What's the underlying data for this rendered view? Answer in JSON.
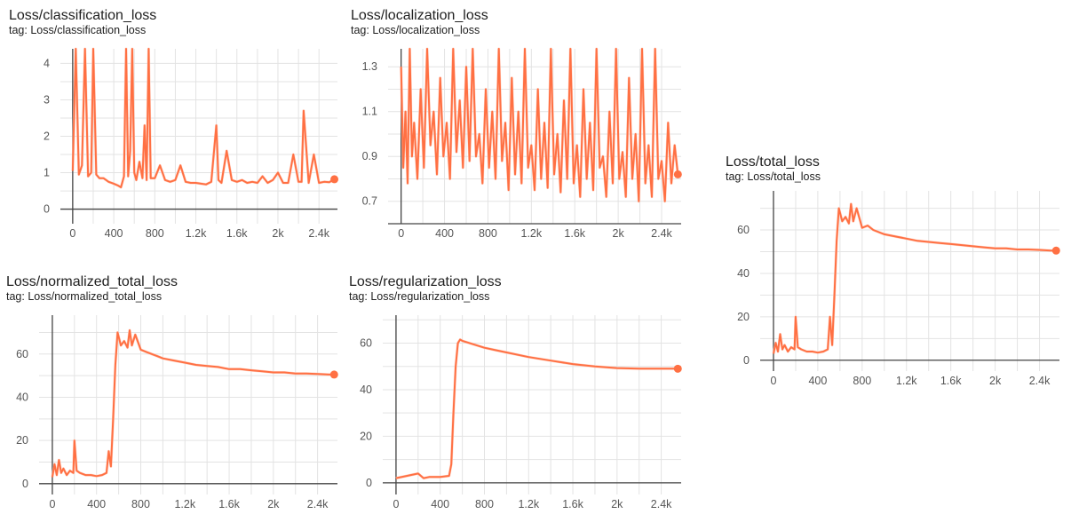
{
  "theme": {
    "accent": "#ff7043",
    "accent_light": "#ffccbc"
  },
  "chart_data": [
    {
      "id": "classification",
      "type": "line",
      "title": "Loss/classification_loss",
      "tag": "tag: Loss/classification_loss",
      "xlim": [
        -120,
        2580
      ],
      "ylim": [
        -0.4,
        4.4
      ],
      "xticks": [
        0,
        400,
        800,
        1200,
        1600,
        2000,
        2400
      ],
      "xtick_labels": [
        "0",
        "400",
        "800",
        "1.2k",
        "1.6k",
        "2k",
        "2.4k"
      ],
      "yticks": [
        0,
        1,
        2,
        3,
        4
      ],
      "ytick_labels": [
        "0",
        "1",
        "2",
        "3",
        "4"
      ],
      "grid": true,
      "series": [
        {
          "x": [
            0,
            30,
            60,
            90,
            120,
            150,
            180,
            200,
            230,
            260,
            300,
            350,
            400,
            440,
            470,
            500,
            520,
            540,
            560,
            580,
            600,
            620,
            650,
            680,
            700,
            720,
            740,
            760,
            800,
            850,
            900,
            950,
            1000,
            1050,
            1100,
            1150,
            1200,
            1250,
            1300,
            1350,
            1400,
            1420,
            1450,
            1500,
            1550,
            1600,
            1650,
            1700,
            1750,
            1800,
            1850,
            1900,
            1950,
            2000,
            2050,
            2100,
            2150,
            2200,
            2230,
            2250,
            2300,
            2350,
            2400,
            2450,
            2500,
            2550
          ],
          "y": [
            1.05,
            4.4,
            0.95,
            1.2,
            4.4,
            0.9,
            1.0,
            4.4,
            0.95,
            0.85,
            0.85,
            0.75,
            0.7,
            0.65,
            0.6,
            0.9,
            4.4,
            0.9,
            1.6,
            4.4,
            1.0,
            0.8,
            1.3,
            0.85,
            2.3,
            0.8,
            4.4,
            0.85,
            0.85,
            1.2,
            0.8,
            0.75,
            0.8,
            1.2,
            0.75,
            0.72,
            0.72,
            0.7,
            0.68,
            0.75,
            2.3,
            0.8,
            0.72,
            1.6,
            0.8,
            0.75,
            0.8,
            0.72,
            0.75,
            0.72,
            0.9,
            0.72,
            0.8,
            1.0,
            0.72,
            0.72,
            1.5,
            0.75,
            0.75,
            2.7,
            0.72,
            1.5,
            0.72,
            0.75,
            0.74,
            0.82
          ]
        }
      ]
    },
    {
      "id": "localization",
      "type": "line",
      "title": "Loss/localization_loss",
      "tag": "tag: Loss/localization_loss",
      "xlim": [
        -120,
        2580
      ],
      "ylim": [
        0.6,
        1.38
      ],
      "xticks": [
        0,
        400,
        800,
        1200,
        1600,
        2000,
        2400
      ],
      "xtick_labels": [
        "0",
        "400",
        "800",
        "1.2k",
        "1.6k",
        "2k",
        "2.4k"
      ],
      "yticks": [
        0.7,
        0.9,
        1.1,
        1.3
      ],
      "ytick_labels": [
        "0.7",
        "0.9",
        "1.1",
        "1.3"
      ],
      "grid": true,
      "series": [
        {
          "x": [
            0,
            20,
            40,
            60,
            80,
            100,
            120,
            150,
            180,
            210,
            240,
            270,
            300,
            330,
            360,
            390,
            420,
            450,
            480,
            510,
            540,
            570,
            600,
            630,
            660,
            690,
            720,
            750,
            780,
            810,
            840,
            870,
            900,
            930,
            960,
            990,
            1020,
            1050,
            1080,
            1110,
            1140,
            1170,
            1200,
            1230,
            1260,
            1290,
            1320,
            1350,
            1380,
            1410,
            1440,
            1470,
            1500,
            1530,
            1560,
            1590,
            1620,
            1650,
            1680,
            1710,
            1740,
            1770,
            1800,
            1830,
            1860,
            1890,
            1920,
            1950,
            1980,
            2010,
            2040,
            2070,
            2100,
            2130,
            2160,
            2190,
            2220,
            2250,
            2280,
            2310,
            2340,
            2370,
            2400,
            2430,
            2460,
            2490,
            2520,
            2550
          ],
          "y": [
            1.3,
            0.85,
            1.1,
            0.78,
            1.38,
            0.9,
            1.05,
            0.8,
            1.2,
            0.85,
            1.38,
            0.95,
            1.1,
            0.82,
            1.25,
            0.9,
            1.05,
            0.8,
            1.38,
            0.92,
            1.15,
            0.85,
            1.3,
            0.88,
            1.38,
            0.9,
            1.0,
            0.78,
            1.2,
            0.85,
            1.1,
            0.8,
            1.38,
            0.88,
            1.05,
            0.75,
            1.25,
            0.82,
            1.1,
            0.78,
            1.38,
            0.85,
            0.95,
            0.75,
            1.2,
            0.8,
            1.05,
            0.76,
            1.38,
            0.82,
            1.0,
            0.74,
            1.15,
            0.8,
            1.38,
            0.78,
            0.95,
            0.72,
            1.2,
            0.8,
            1.05,
            0.75,
            1.38,
            0.85,
            0.9,
            0.72,
            1.1,
            0.78,
            1.38,
            0.8,
            0.92,
            0.72,
            1.25,
            0.8,
            1.0,
            0.7,
            1.38,
            0.78,
            0.95,
            0.72,
            1.38,
            0.8,
            0.88,
            0.7,
            1.05,
            0.78,
            0.95,
            0.82
          ]
        }
      ]
    },
    {
      "id": "total",
      "type": "line",
      "title": "Loss/total_loss",
      "tag": "tag: Loss/total_loss",
      "xlim": [
        -120,
        2580
      ],
      "ylim": [
        -5,
        78
      ],
      "xticks": [
        0,
        400,
        800,
        1200,
        1600,
        2000,
        2400
      ],
      "xtick_labels": [
        "0",
        "400",
        "800",
        "1.2k",
        "1.6k",
        "2k",
        "2.4k"
      ],
      "yticks": [
        0,
        20,
        40,
        60
      ],
      "ytick_labels": [
        "0",
        "20",
        "40",
        "60"
      ],
      "grid": true,
      "series": [
        {
          "x": [
            0,
            20,
            40,
            60,
            80,
            100,
            130,
            160,
            190,
            200,
            220,
            250,
            300,
            350,
            400,
            450,
            490,
            510,
            530,
            550,
            570,
            590,
            620,
            650,
            680,
            700,
            720,
            750,
            800,
            850,
            900,
            950,
            1000,
            1100,
            1200,
            1300,
            1400,
            1500,
            1600,
            1700,
            1800,
            1900,
            2000,
            2100,
            2200,
            2300,
            2400,
            2500,
            2550
          ],
          "y": [
            3,
            8,
            4,
            12,
            5,
            7,
            4,
            6,
            5,
            20,
            6,
            5,
            4,
            4,
            3.5,
            4,
            5,
            20,
            7,
            30,
            55,
            70,
            64,
            66,
            63,
            72,
            64,
            70,
            61,
            62,
            60,
            59,
            58,
            57,
            56,
            55,
            54.5,
            54,
            53.5,
            53,
            52.5,
            52,
            51.5,
            51.5,
            51,
            51,
            50.8,
            50.5,
            50.5
          ]
        }
      ]
    },
    {
      "id": "normalized",
      "type": "line",
      "title": "Loss/normalized_total_loss",
      "tag": "tag: Loss/normalized_total_loss",
      "xlim": [
        -120,
        2580
      ],
      "ylim": [
        -5,
        78
      ],
      "xticks": [
        0,
        400,
        800,
        1200,
        1600,
        2000,
        2400
      ],
      "xtick_labels": [
        "0",
        "400",
        "800",
        "1.2k",
        "1.6k",
        "2k",
        "2.4k"
      ],
      "yticks": [
        0,
        20,
        40,
        60
      ],
      "ytick_labels": [
        "0",
        "20",
        "40",
        "60"
      ],
      "grid": true,
      "series": [
        {
          "x": [
            0,
            20,
            40,
            60,
            80,
            100,
            130,
            160,
            190,
            200,
            220,
            250,
            300,
            350,
            400,
            450,
            490,
            510,
            530,
            550,
            570,
            590,
            620,
            650,
            680,
            700,
            720,
            750,
            800,
            850,
            900,
            950,
            1000,
            1100,
            1200,
            1300,
            1400,
            1500,
            1600,
            1700,
            1800,
            1900,
            2000,
            2100,
            2200,
            2300,
            2400,
            2500,
            2550
          ],
          "y": [
            3,
            9,
            4,
            11,
            5,
            7,
            4,
            6,
            5,
            20,
            6,
            5,
            4,
            4,
            3.5,
            4,
            5,
            15,
            8,
            30,
            55,
            70,
            64,
            66,
            63,
            71,
            64,
            69,
            62,
            61,
            60,
            59,
            58,
            57,
            56,
            55,
            54.5,
            54,
            53,
            53,
            52.5,
            52,
            51.5,
            51.5,
            51,
            51,
            50.8,
            50.5,
            50.5
          ]
        }
      ]
    },
    {
      "id": "regularization",
      "type": "line",
      "title": "Loss/regularization_loss",
      "tag": "tag: Loss/regularization_loss",
      "xlim": [
        -120,
        2580
      ],
      "ylim": [
        -5,
        72
      ],
      "xticks": [
        0,
        400,
        800,
        1200,
        1600,
        2000,
        2400
      ],
      "xtick_labels": [
        "0",
        "400",
        "800",
        "1.2k",
        "1.6k",
        "2k",
        "2.4k"
      ],
      "yticks": [
        0,
        20,
        40,
        60
      ],
      "ytick_labels": [
        "0",
        "20",
        "40",
        "60"
      ],
      "grid": true,
      "series": [
        {
          "x": [
            0,
            100,
            200,
            250,
            300,
            400,
            480,
            500,
            520,
            540,
            560,
            580,
            600,
            700,
            800,
            900,
            1000,
            1200,
            1400,
            1600,
            1800,
            2000,
            2200,
            2400,
            2500,
            2550
          ],
          "y": [
            2,
            3,
            4,
            2,
            2.5,
            2.5,
            3,
            8,
            30,
            50,
            60,
            61.5,
            61,
            59.5,
            58,
            57,
            56,
            54,
            52.5,
            51,
            50,
            49.3,
            49,
            49,
            49,
            49
          ]
        }
      ]
    }
  ]
}
